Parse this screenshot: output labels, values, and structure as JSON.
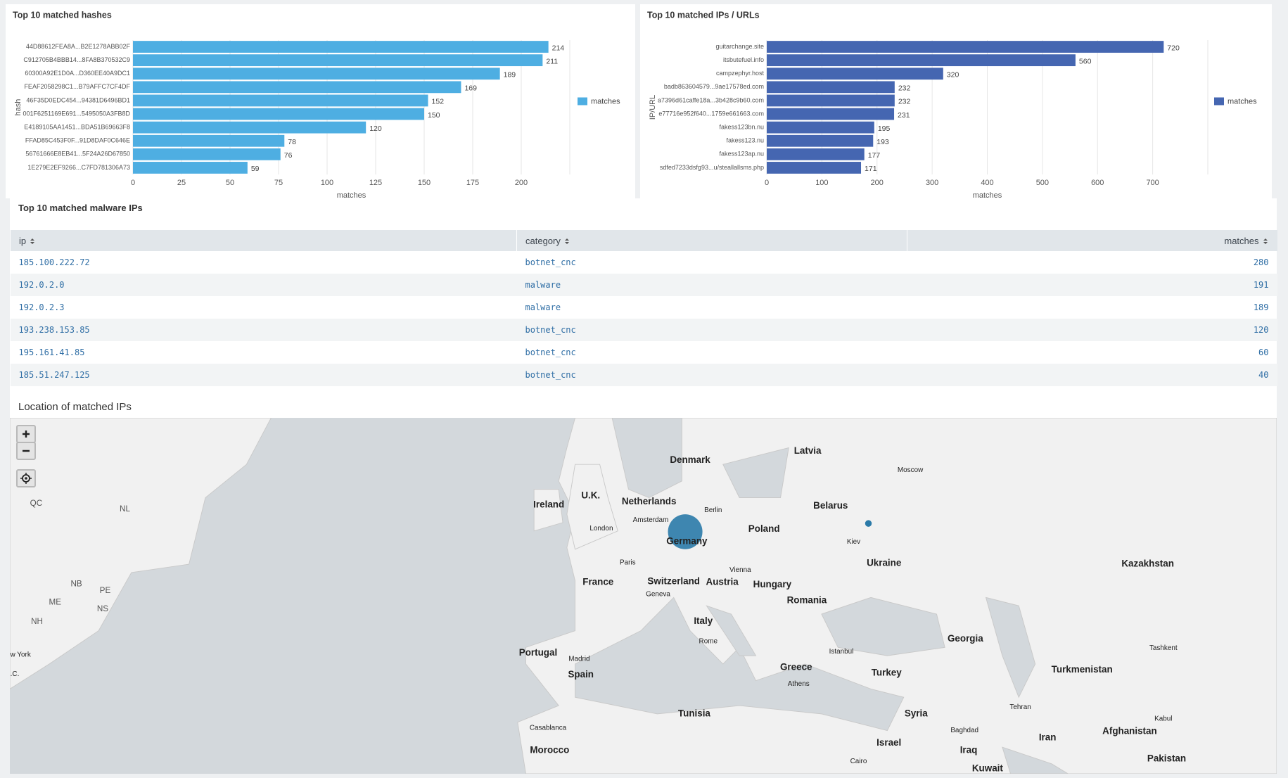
{
  "chart_data": [
    {
      "type": "bar",
      "orientation": "horizontal",
      "title": "Top 10 matched hashes",
      "xlabel": "matches",
      "ylabel": "hash",
      "categories": [
        "44D88612FEA8A...B2E1278ABB02F",
        "C912705B4BBB14...8FA8B370532C9",
        "60300A92E1D0A...D360EE40A9DC1",
        "FEAF2058298C1...B79AFFC7CF4DF",
        "46F35D0EDC454...94381D6496BD1",
        "001F6251169E691...5495050A3FB8D",
        "E4189105AA1451...BDA51B69663F8",
        "FFAD85C453F0F...91D8DAF0C646E",
        "56761666E8EB41...5F24A26D67850",
        "1E279E2EF9266...C7FD781306A73"
      ],
      "series": [
        {
          "name": "matches",
          "color": "#4eaee2",
          "values": [
            214,
            211,
            189,
            169,
            152,
            150,
            120,
            78,
            76,
            59
          ]
        }
      ],
      "xlim": [
        0,
        225
      ],
      "xticks": [
        0,
        25,
        50,
        75,
        100,
        125,
        150,
        175,
        200
      ],
      "grid": true,
      "legend": "right",
      "value_labels_shown": true
    },
    {
      "type": "bar",
      "orientation": "horizontal",
      "title": "Top 10 matched IPs / URLs",
      "xlabel": "matches",
      "ylabel": "IP/URL",
      "categories": [
        "guitarchange.site",
        "itsbutefuel.info",
        "campzephyr.host",
        "badb863604579...9ae17578ed.com",
        "a7396d61caffe18a...3b428c9b60.com",
        "e77716e952f640...1759e661663.com",
        "fakess123bn.nu",
        "fakess123.nu",
        "fakess123ap.nu",
        "sdfed7233dsfg93...u/steallallsms.php"
      ],
      "series": [
        {
          "name": "matches",
          "color": "#4566b1",
          "values": [
            720,
            560,
            320,
            232,
            232,
            231,
            195,
            193,
            177,
            171
          ]
        }
      ],
      "xlim": [
        0,
        800
      ],
      "xticks": [
        0,
        100,
        200,
        300,
        400,
        500,
        600,
        700
      ],
      "grid": true,
      "legend": "right",
      "value_labels_shown": true
    }
  ],
  "table": {
    "title": "Top 10 matched malware IPs",
    "columns": [
      "ip",
      "category",
      "matches"
    ],
    "rows": [
      [
        "185.100.222.72",
        "botnet_cnc",
        280
      ],
      [
        "192.0.2.0",
        "malware",
        191
      ],
      [
        "192.0.2.3",
        "malware",
        189
      ],
      [
        "193.238.153.85",
        "botnet_cnc",
        120
      ],
      [
        "195.161.41.85",
        "botnet_cnc",
        60
      ],
      [
        "185.51.247.125",
        "botnet_cnc",
        40
      ]
    ]
  },
  "map": {
    "title": "Location of matched IPs",
    "labels": [
      "Denmark",
      "Latvia",
      "Moscow",
      "Ireland",
      "U.K.",
      "Netherlands",
      "Berlin",
      "Belarus",
      "Amsterdam",
      "London",
      "Poland",
      "Germany",
      "Kiev",
      "Paris",
      "Ukraine",
      "Kazakhstan",
      "Vienna",
      "France",
      "Switzerland",
      "Austria",
      "Hungary",
      "Geneva",
      "Romania",
      "Italy",
      "Rome",
      "Georgia",
      "Portugal",
      "Madrid",
      "Istanbul",
      "Tashkent",
      "Spain",
      "Greece",
      "Turkey",
      "Turkmenistan",
      "Athens",
      "Tehran",
      "Tunisia",
      "Syria",
      "Kabul",
      "Casablanca",
      "Baghdad",
      "Iran",
      "Afghanistan",
      "Israel",
      "Iraq",
      "Morocco",
      "Pakistan",
      "Cairo",
      "Kuwait",
      "QC",
      "NL",
      "NB",
      "PE",
      "ME",
      "NS",
      "NH",
      "w York",
      ".C."
    ]
  }
}
